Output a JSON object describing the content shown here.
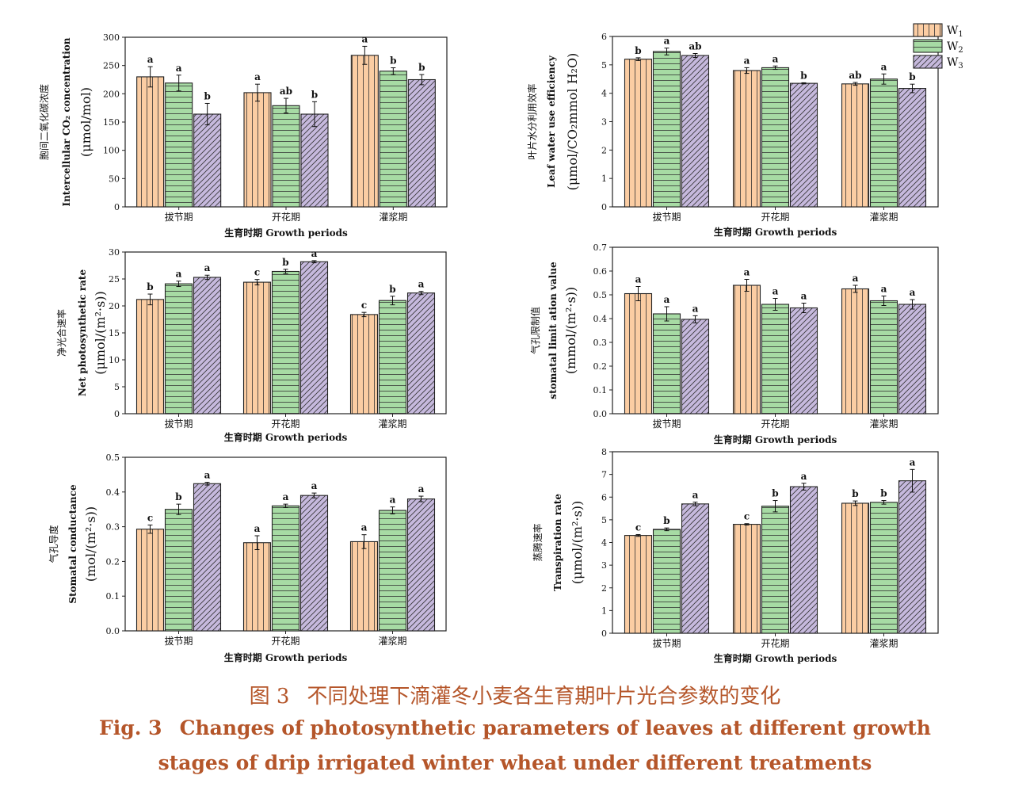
{
  "legend": {
    "entries": [
      {
        "main": "W",
        "sub": "1",
        "color": "#fbcda3",
        "pattern": "vertical"
      },
      {
        "main": "W",
        "sub": "2",
        "color": "#a7dba4",
        "pattern": "horizontal"
      },
      {
        "main": "W",
        "sub": "3",
        "color": "#c6b9dd",
        "pattern": "diagonal"
      }
    ],
    "placement": "top-right"
  },
  "caption": {
    "cn_label": "图 3",
    "cn_text": "不同处理下滴灌冬小麦各生育期叶片光合参数的变化",
    "en_label": "Fig. 3",
    "en_line1": "Changes of photosynthetic parameters of leaves at different growth",
    "en_line2": "stages of drip irrigated winter wheat under different treatments"
  },
  "chart_data": [
    {
      "type": "bar",
      "categories": [
        "拔节期",
        "开花期",
        "灌浆期"
      ],
      "xlabel": "生育时期  Growth periods",
      "ylabel_cn": "胞间二氧化碳浓度",
      "ylabel_en": "Intercellular CO₂ concentration",
      "ylabel_unit": "(μmol/mol)",
      "ylim": [
        0,
        300
      ],
      "yticks": [
        0,
        50,
        100,
        150,
        200,
        250,
        300
      ],
      "series": [
        {
          "values": [
            230,
            202,
            268
          ],
          "errors": [
            18,
            15,
            16
          ],
          "letters": [
            "a",
            "a",
            "a"
          ]
        },
        {
          "values": [
            219,
            179,
            240
          ],
          "errors": [
            14,
            13,
            6
          ],
          "letters": [
            "a",
            "ab",
            "b"
          ]
        },
        {
          "values": [
            164,
            164,
            225
          ],
          "errors": [
            19,
            22,
            9
          ],
          "letters": [
            "b",
            "b",
            "b"
          ]
        }
      ]
    },
    {
      "type": "bar",
      "categories": [
        "拔节期",
        "开花期",
        "灌浆期"
      ],
      "xlabel": "生育时期  Growth periods",
      "ylabel_cn": "叶片水分利用效率",
      "ylabel_en": "Leaf water use efficiency",
      "ylabel_unit": "(μmol/CO₂mmol H₂O)",
      "ylim": [
        0,
        6
      ],
      "yticks": [
        0,
        1,
        2,
        3,
        4,
        5,
        6
      ],
      "series": [
        {
          "values": [
            5.2,
            4.8,
            4.33
          ],
          "errors": [
            0.05,
            0.1,
            0.05
          ],
          "letters": [
            "b",
            "a",
            "ab"
          ]
        },
        {
          "values": [
            5.47,
            4.9,
            4.5
          ],
          "errors": [
            0.12,
            0.06,
            0.18
          ],
          "letters": [
            "a",
            "a",
            "a"
          ]
        },
        {
          "values": [
            5.33,
            4.35,
            4.17
          ],
          "errors": [
            0.07,
            0.02,
            0.15
          ],
          "letters": [
            "ab",
            "b",
            "b"
          ]
        }
      ]
    },
    {
      "type": "bar",
      "categories": [
        "拔节期",
        "开花期",
        "灌浆期"
      ],
      "xlabel": "生育时期  Growth periods",
      "ylabel_cn": "净光合速率",
      "ylabel_en": "Net photosynthetic rate",
      "ylabel_unit": "(μmol/(m²·s))",
      "ylim": [
        0,
        30
      ],
      "yticks": [
        0,
        5,
        10,
        15,
        20,
        25,
        30
      ],
      "series": [
        {
          "values": [
            21.2,
            24.4,
            18.4
          ],
          "errors": [
            1.0,
            0.5,
            0.4
          ],
          "letters": [
            "b",
            "c",
            "c"
          ]
        },
        {
          "values": [
            24.1,
            26.4,
            21.0
          ],
          "errors": [
            0.5,
            0.4,
            0.8
          ],
          "letters": [
            "a",
            "b",
            "b"
          ]
        },
        {
          "values": [
            25.3,
            28.2,
            22.4
          ],
          "errors": [
            0.4,
            0.2,
            0.3
          ],
          "letters": [
            "a",
            "a",
            "a"
          ]
        }
      ]
    },
    {
      "type": "bar",
      "categories": [
        "拔节期",
        "开花期",
        "灌浆期"
      ],
      "xlabel": "生育时期  Growth periods",
      "ylabel_cn": "气孔限制值",
      "ylabel_en": "stomatal limit ation value",
      "ylabel_unit": "(mmol/(m²·s))",
      "ylim": [
        0,
        0.7
      ],
      "yticks": [
        0.0,
        0.1,
        0.2,
        0.3,
        0.4,
        0.5,
        0.6,
        0.7
      ],
      "series": [
        {
          "values": [
            0.505,
            0.54,
            0.525
          ],
          "errors": [
            0.03,
            0.025,
            0.015
          ],
          "letters": [
            "a",
            "a",
            "a"
          ]
        },
        {
          "values": [
            0.42,
            0.46,
            0.475
          ],
          "errors": [
            0.03,
            0.025,
            0.02
          ],
          "letters": [
            "a",
            "a",
            "a"
          ]
        },
        {
          "values": [
            0.397,
            0.445,
            0.46
          ],
          "errors": [
            0.015,
            0.02,
            0.02
          ],
          "letters": [
            "a",
            "a",
            "a"
          ]
        }
      ]
    },
    {
      "type": "bar",
      "categories": [
        "拔节期",
        "开花期",
        "灌浆期"
      ],
      "xlabel": "生育时期  Growth periods",
      "ylabel_cn": "气孔导度",
      "ylabel_en": "Stomatal conductance",
      "ylabel_unit": "(mol/(m²·s))",
      "ylim": [
        0,
        0.5
      ],
      "yticks": [
        0.0,
        0.1,
        0.2,
        0.3,
        0.4,
        0.5
      ],
      "series": [
        {
          "values": [
            0.293,
            0.254,
            0.257
          ],
          "errors": [
            0.012,
            0.02,
            0.02
          ],
          "letters": [
            "c",
            "a",
            "a"
          ]
        },
        {
          "values": [
            0.35,
            0.36,
            0.347
          ],
          "errors": [
            0.015,
            0.005,
            0.01
          ],
          "letters": [
            "b",
            "a",
            "a"
          ]
        },
        {
          "values": [
            0.424,
            0.39,
            0.38
          ],
          "errors": [
            0.004,
            0.007,
            0.008
          ],
          "letters": [
            "a",
            "a",
            "a"
          ]
        }
      ]
    },
    {
      "type": "bar",
      "categories": [
        "拔节期",
        "开花期",
        "灌浆期"
      ],
      "xlabel": "生育时期  Growth periods",
      "ylabel_cn": "蒸腾速率",
      "ylabel_en": "Transpiration rate",
      "ylabel_unit": "(μmol/(m²·s))",
      "ylim": [
        0,
        8
      ],
      "yticks": [
        0,
        1,
        2,
        3,
        4,
        5,
        6,
        7,
        8
      ],
      "series": [
        {
          "values": [
            4.31,
            4.8,
            5.73
          ],
          "errors": [
            0.04,
            0.03,
            0.1
          ],
          "letters": [
            "c",
            "c",
            "b"
          ]
        },
        {
          "values": [
            4.58,
            5.6,
            5.77
          ],
          "errors": [
            0.06,
            0.25,
            0.08
          ],
          "letters": [
            "b",
            "b",
            "b"
          ]
        },
        {
          "values": [
            5.7,
            6.46,
            6.72
          ],
          "errors": [
            0.08,
            0.15,
            0.5
          ],
          "letters": [
            "a",
            "a",
            "a"
          ]
        }
      ]
    }
  ]
}
